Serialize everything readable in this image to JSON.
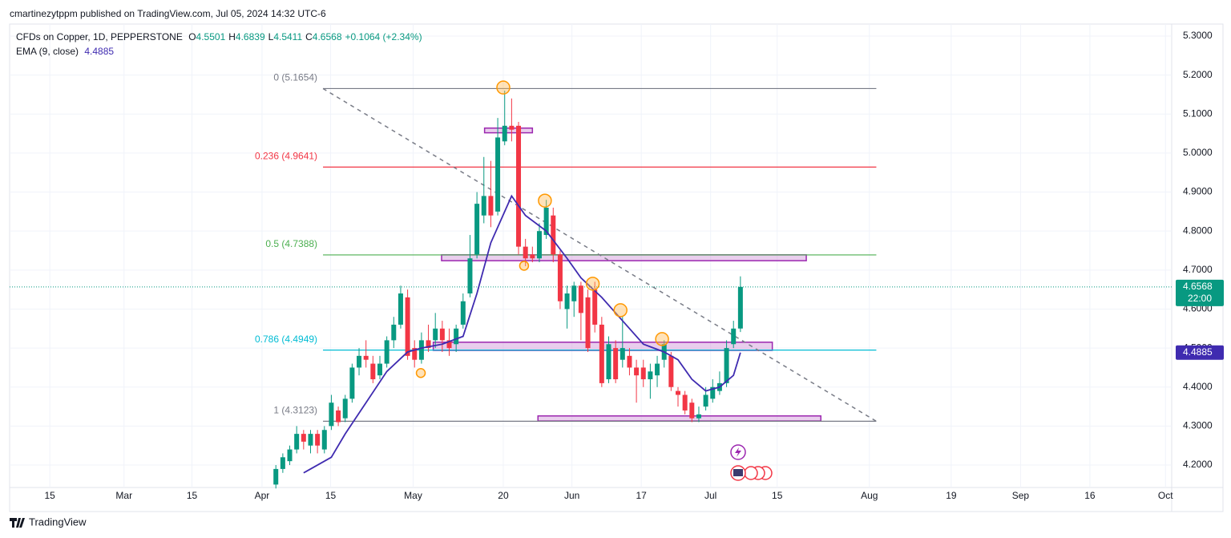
{
  "published": "cmartinezytppm published on TradingView.com, Jul 05, 2024 14:32 UTC-6",
  "footer": "TradingView",
  "chart_data": {
    "type": "candlestick",
    "header": {
      "symbol": "CFDs on Copper, 1D, PEPPERSTONE",
      "ohlc": [
        {
          "key": "O",
          "value": 4.5501
        },
        {
          "key": "H",
          "value": 4.6839
        },
        {
          "key": "L",
          "value": 4.5411
        },
        {
          "key": "C",
          "value": 4.6568
        }
      ],
      "change": "+0.1064 (+2.34%)",
      "ema_name": "EMA (9, close)",
      "ema_value": 4.4885
    },
    "countdown": "22:00",
    "up_color": "#089981",
    "down_color": "#f23645",
    "x": [
      2,
      3,
      4,
      5,
      6,
      7,
      8,
      9,
      10,
      11,
      12,
      13,
      14,
      15,
      16,
      17,
      18,
      19,
      20,
      21,
      22,
      23,
      24,
      25,
      26,
      27,
      28,
      29,
      30,
      31,
      32,
      33,
      34,
      35,
      36,
      37,
      38,
      39,
      40,
      41,
      42,
      43,
      44,
      45,
      46,
      47,
      48,
      49,
      50,
      51,
      52,
      53,
      54,
      55,
      56,
      57,
      58,
      59,
      60,
      61,
      62,
      63,
      64,
      65,
      66,
      67,
      68,
      69
    ],
    "open": [
      4.15,
      4.19,
      4.21,
      4.24,
      4.28,
      4.25,
      4.28,
      4.24,
      4.3,
      4.34,
      4.32,
      4.37,
      4.45,
      4.48,
      4.46,
      4.43,
      4.46,
      4.52,
      4.56,
      4.63,
      4.5,
      4.47,
      4.52,
      4.52,
      4.55,
      4.52,
      4.51,
      4.56,
      4.64,
      4.74,
      4.84,
      4.89,
      4.85,
      5.03,
      5.07,
      5.07,
      4.76,
      4.74,
      4.73,
      4.79,
      4.84,
      4.74,
      4.6,
      4.62,
      4.66,
      4.63,
      4.65,
      4.56,
      4.42,
      4.5,
      4.47,
      4.48,
      4.45,
      4.45,
      4.42,
      4.43,
      4.47,
      4.48,
      4.39,
      4.38,
      4.36,
      4.32,
      4.35,
      4.37,
      4.39,
      4.41,
      4.51,
      4.5501
    ],
    "high": [
      4.2,
      4.23,
      4.25,
      4.3,
      4.29,
      4.29,
      4.29,
      4.3,
      4.38,
      4.35,
      4.38,
      4.46,
      4.5,
      4.52,
      4.48,
      4.48,
      4.53,
      4.58,
      4.66,
      4.65,
      4.52,
      4.54,
      4.56,
      4.59,
      4.57,
      4.55,
      4.56,
      4.64,
      4.79,
      4.9,
      4.99,
      4.98,
      5.09,
      5.16,
      5.14,
      5.08,
      4.78,
      4.76,
      4.82,
      4.88,
      4.86,
      4.75,
      4.66,
      4.67,
      4.67,
      4.65,
      4.67,
      4.58,
      4.53,
      4.52,
      4.58,
      4.5,
      4.47,
      4.47,
      4.46,
      4.48,
      4.52,
      4.49,
      4.4,
      4.39,
      4.37,
      4.35,
      4.4,
      4.42,
      4.44,
      4.52,
      4.57,
      4.6839
    ],
    "low": [
      4.14,
      4.18,
      4.2,
      4.23,
      4.24,
      4.23,
      4.23,
      4.23,
      4.29,
      4.3,
      4.31,
      4.36,
      4.43,
      4.45,
      4.41,
      4.42,
      4.45,
      4.5,
      4.55,
      4.47,
      4.45,
      4.46,
      4.49,
      4.5,
      4.49,
      4.48,
      4.49,
      4.55,
      4.63,
      4.73,
      4.82,
      4.81,
      4.84,
      5.02,
      5.03,
      4.74,
      4.71,
      4.72,
      4.72,
      4.78,
      4.72,
      4.6,
      4.55,
      4.58,
      4.52,
      4.49,
      4.54,
      4.4,
      4.41,
      4.41,
      4.45,
      4.43,
      4.36,
      4.4,
      4.37,
      4.4,
      4.45,
      4.39,
      4.35,
      4.33,
      4.31,
      4.31,
      4.34,
      4.36,
      4.38,
      4.4,
      4.5,
      4.5411
    ],
    "close": [
      4.19,
      4.22,
      4.24,
      4.28,
      4.26,
      4.28,
      4.25,
      4.29,
      4.36,
      4.31,
      4.37,
      4.45,
      4.48,
      4.47,
      4.42,
      4.46,
      4.52,
      4.56,
      4.64,
      4.48,
      4.47,
      4.52,
      4.5,
      4.55,
      4.52,
      4.5,
      4.55,
      4.62,
      4.73,
      4.87,
      4.89,
      4.84,
      5.04,
      5.07,
      5.06,
      4.76,
      4.73,
      4.73,
      4.8,
      4.86,
      4.74,
      4.62,
      4.64,
      4.66,
      4.59,
      4.5,
      4.56,
      4.41,
      4.51,
      4.42,
      4.5,
      4.45,
      4.43,
      4.42,
      4.44,
      4.46,
      4.51,
      4.4,
      4.38,
      4.34,
      4.32,
      4.33,
      4.38,
      4.4,
      4.41,
      4.5,
      4.55,
      4.6568
    ],
    "ema": {
      "name": "EMA (9, close)",
      "color": "#3f2bb0",
      "x": [
        6,
        10,
        12,
        15,
        18,
        21,
        23,
        26,
        29,
        31,
        33,
        36,
        38,
        41,
        44,
        46,
        49,
        52,
        55,
        58,
        60,
        62,
        64,
        66,
        68,
        69
      ],
      "values": [
        4.18,
        4.22,
        4.28,
        4.36,
        4.44,
        4.49,
        4.5,
        4.51,
        4.53,
        4.64,
        4.77,
        4.89,
        4.84,
        4.8,
        4.73,
        4.68,
        4.63,
        4.57,
        4.51,
        4.49,
        4.47,
        4.42,
        4.39,
        4.4,
        4.43,
        4.4885
      ]
    },
    "fib_levels": [
      {
        "label": "0 (5.1654)",
        "value": 5.1654,
        "color": "#787b86"
      },
      {
        "label": "0.236 (4.9641)",
        "value": 4.9641,
        "color": "#f23645"
      },
      {
        "label": "0.5 (4.7388)",
        "value": 4.7388,
        "color": "#4caf50"
      },
      {
        "label": "0.786 (4.4949)",
        "value": 4.4949,
        "color": "#00bcd4"
      },
      {
        "label": "1 (4.3123)",
        "value": 4.3123,
        "color": "#787b86"
      }
    ],
    "fib_x": [
      8.8,
      88.6
    ],
    "trend_line": {
      "x": [
        8.8,
        88.6
      ],
      "values": [
        5.1654,
        4.3123
      ]
    },
    "zones": [
      {
        "x": [
          32.1,
          39.0
        ],
        "values": [
          5.064,
          5.052
        ]
      },
      {
        "x": [
          25.9,
          78.5
        ],
        "values": [
          4.739,
          4.724
        ]
      },
      {
        "x": [
          24.7,
          73.6
        ],
        "values": [
          4.515,
          4.494
        ]
      },
      {
        "x": [
          39.8,
          80.6
        ],
        "values": [
          4.326,
          4.313
        ]
      }
    ],
    "markers": {
      "x": [
        34.8,
        40.8,
        37.8,
        47.7,
        51.7,
        57.7,
        22.9
      ],
      "values": [
        5.168,
        4.878,
        4.711,
        4.665,
        4.597,
        4.523,
        4.436
      ]
    },
    "xlim": [
      -36.4,
      131.2
    ],
    "xticks": [
      {
        "value": -30.6,
        "label": "15"
      },
      {
        "value": -19.9,
        "label": "Mar"
      },
      {
        "value": -10.1,
        "label": "15"
      },
      {
        "value": 0,
        "label": "Apr"
      },
      {
        "value": 9.9,
        "label": "15"
      },
      {
        "value": 21.8,
        "label": "May"
      },
      {
        "value": 34.8,
        "label": "20"
      },
      {
        "value": 44.7,
        "label": "Jun"
      },
      {
        "value": 54.7,
        "label": "17"
      },
      {
        "value": 64.7,
        "label": "Jul"
      },
      {
        "value": 74.3,
        "label": "15"
      },
      {
        "value": 87.6,
        "label": "Aug"
      },
      {
        "value": 99.4,
        "label": "19"
      },
      {
        "value": 109.4,
        "label": "Sep"
      },
      {
        "value": 119.4,
        "label": "16"
      },
      {
        "value": 130.3,
        "label": "Oct"
      }
    ],
    "ylim": [
      4.1425,
      5.3308
    ],
    "yticks": [
      {
        "value": 4.2,
        "label": "4.2000"
      },
      {
        "value": 4.3,
        "label": "4.3000"
      },
      {
        "value": 4.4,
        "label": "4.4000"
      },
      {
        "value": 4.5,
        "label": "4.5000"
      },
      {
        "value": 4.6,
        "label": "4.6000"
      },
      {
        "value": 4.7,
        "label": "4.7000"
      },
      {
        "value": 4.8,
        "label": "4.8000"
      },
      {
        "value": 4.9,
        "label": "4.9000"
      },
      {
        "value": 5.0,
        "label": "5.0000"
      },
      {
        "value": 5.1,
        "label": "5.1000"
      },
      {
        "value": 5.2,
        "label": "5.2000"
      },
      {
        "value": 5.3,
        "label": "5.3000"
      }
    ],
    "grid": true
  }
}
